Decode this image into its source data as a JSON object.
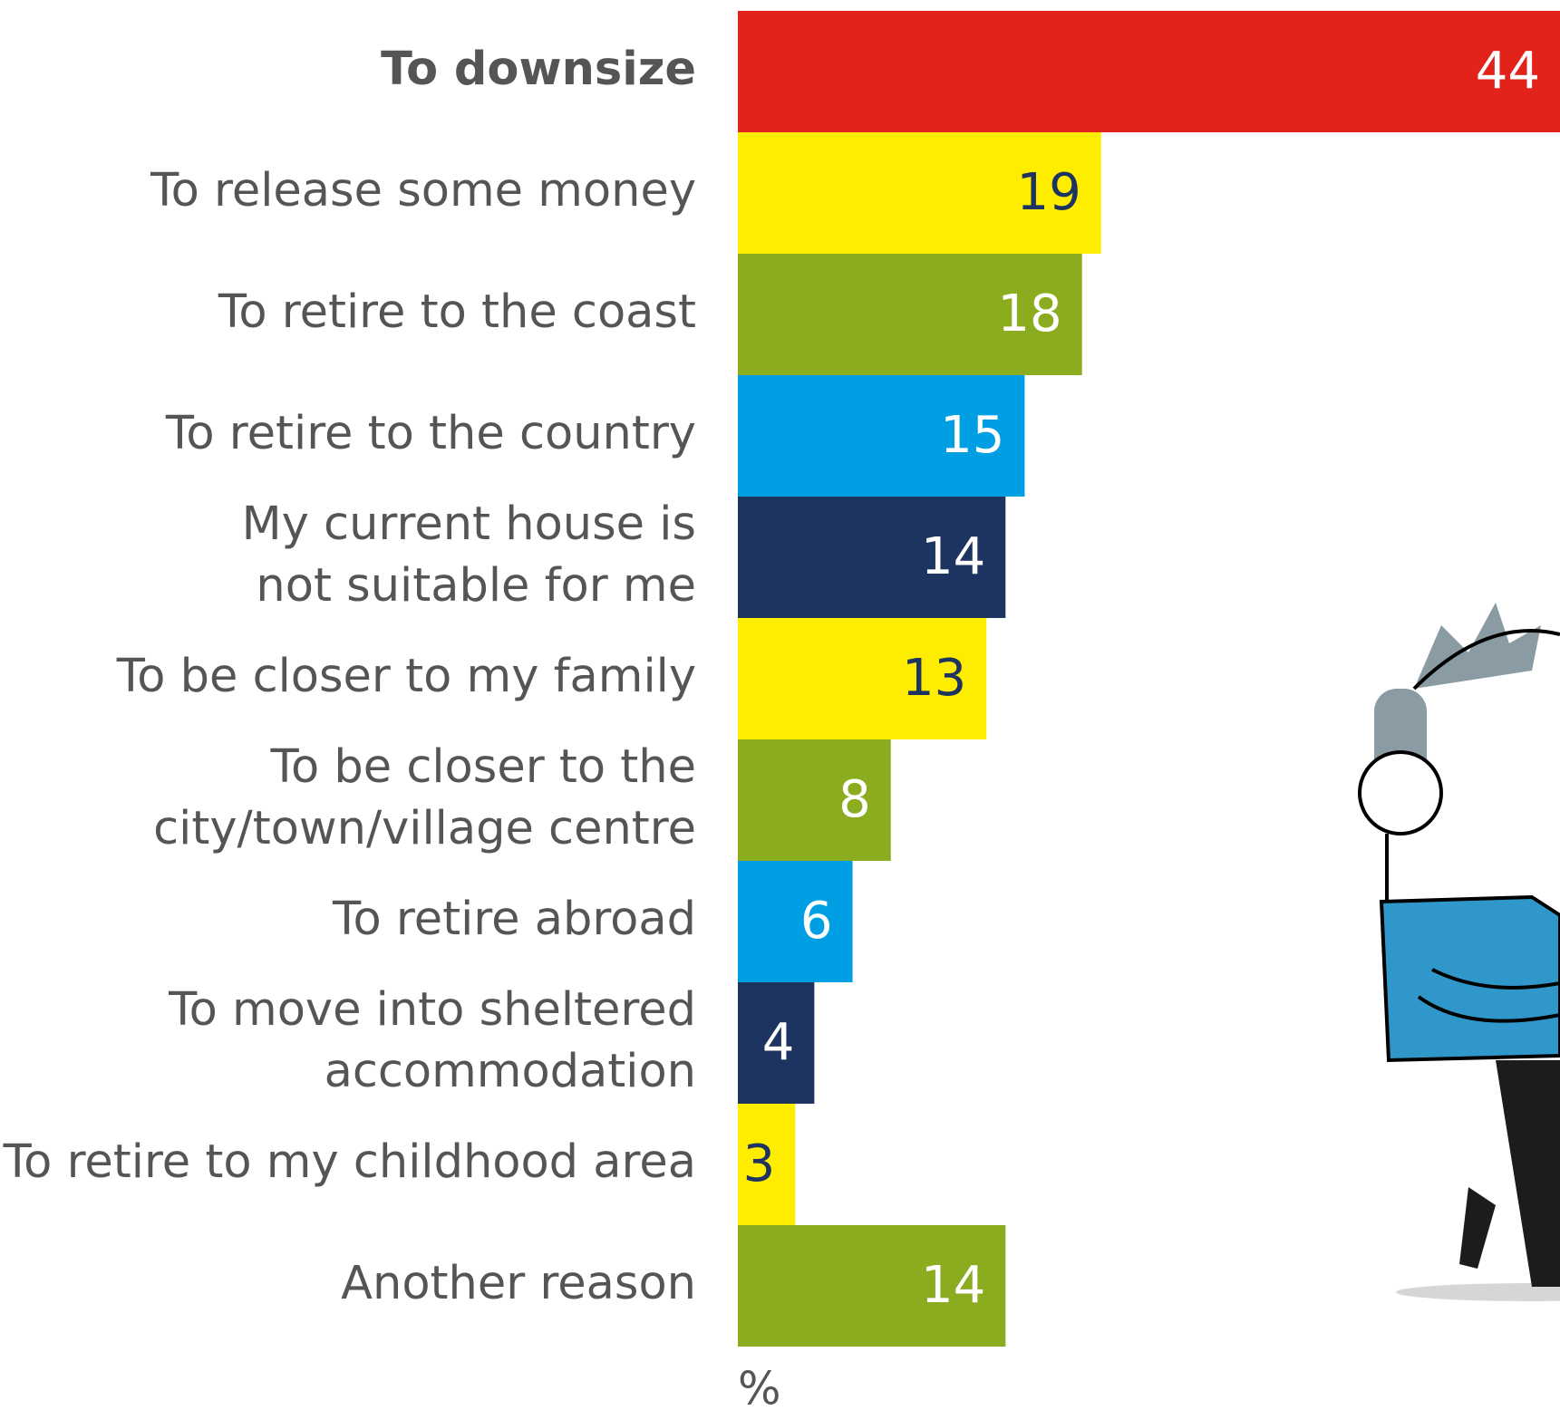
{
  "chart_data": {
    "type": "barh",
    "categories": [
      "To downsize",
      "To release some money",
      "To retire to the coast",
      "To retire to the country",
      "My current house is\nnot suitable for me",
      "To be closer to my family",
      "To be closer to the\ncity/town/village centre",
      "To retire abroad",
      "To move into sheltered\naccommodation",
      "To retire to my childhood area",
      "Another reason"
    ],
    "values": [
      44,
      19,
      18,
      15,
      14,
      13,
      8,
      6,
      4,
      3,
      14
    ],
    "colors": [
      "#e2231a",
      "#ffed00",
      "#8aac1e",
      "#009fe3",
      "#1d3461",
      "#ffed00",
      "#8aac1e",
      "#009fe3",
      "#1d3461",
      "#ffed00",
      "#8aac1e"
    ],
    "label_colors": [
      "#ffffff",
      "#1d3461",
      "#ffffff",
      "#ffffff",
      "#ffffff",
      "#1d3461",
      "#ffffff",
      "#ffffff",
      "#ffffff",
      "#1d3461",
      "#ffffff"
    ],
    "highlight_index": 0,
    "xlabel": "%",
    "xlim": [
      0,
      43
    ]
  }
}
